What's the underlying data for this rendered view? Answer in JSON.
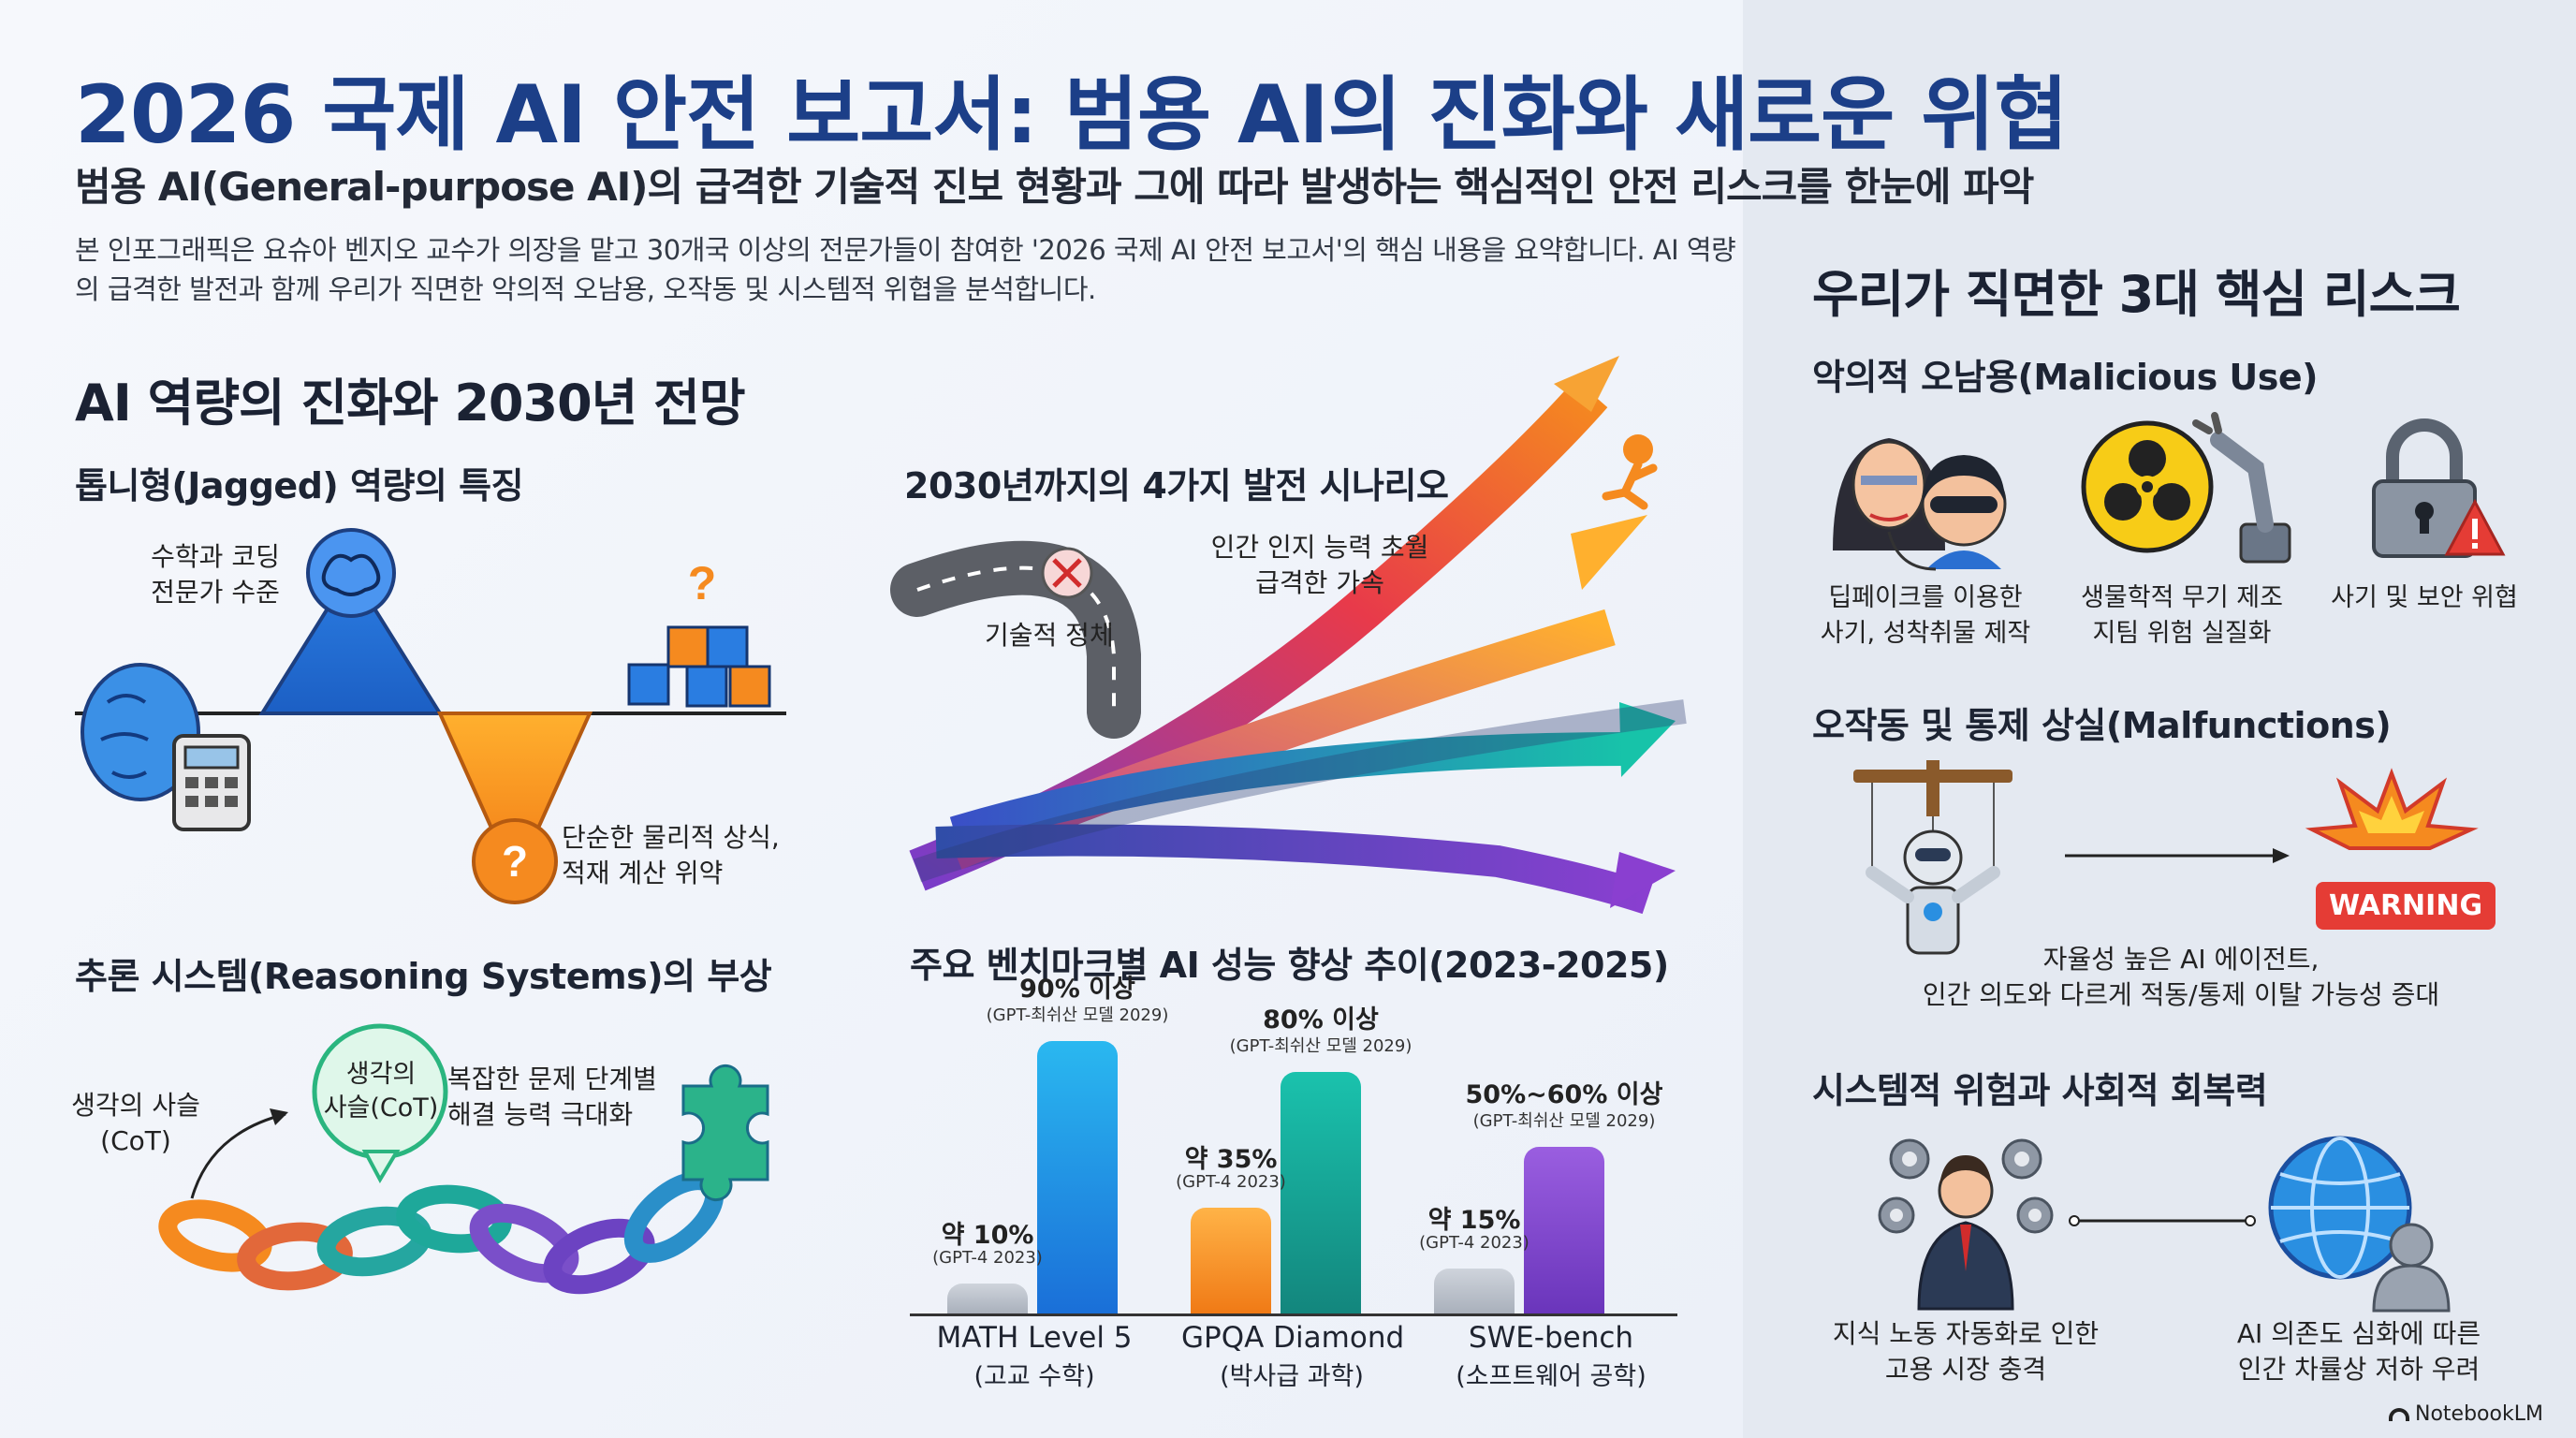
{
  "header": {
    "title": "2026 국제 AI 안전 보고서: 범용 AI의 진화와 새로운 위협",
    "subtitle": "범용 AI(General-purpose AI)의 급격한 기술적 진보 현황과 그에 따라 발생하는 핵심적인 안전 리스크를 한눈에 파악",
    "intro": "본 인포그래픽은 요슈아 벤지오 교수가 의장을 맡고 30개국 이상의 전문가들이 참여한 '2026 국제 AI 안전 보고서'의 핵심 내용을 요약합니다. AI 역량의 급격한 발전과 함께 우리가 직면한 악의적 오남용, 오작동 및 시스템적 위협을 분석합니다."
  },
  "capabilities": {
    "heading": "AI 역량의 진화와 2030년 전망",
    "jagged": {
      "heading": "톱니형(Jagged) 역량의 특징",
      "peak_label_line1": "수학과 코딩",
      "peak_label_line2": "전문가 수준",
      "valley_label_line1": "단순한 물리적 상식,",
      "valley_label_line2": "적재 계산 위약"
    },
    "reasoning": {
      "heading": "추론 시스템(Reasoning Systems)의 부상",
      "cot_left_line1": "생각의 사슬",
      "cot_left_line2": "(CoT)",
      "bubble_line1": "생각의",
      "bubble_line2": "사슬(CoT)",
      "right_line1": "복잡한 문제 단계별",
      "right_line2": "해결 능력 극대화"
    },
    "scenarios": {
      "heading": "2030년까지의 4가지 발전 시나리오",
      "stagnation": "기술적 정체",
      "accel_line1": "인간 인지 능력 초월",
      "accel_line2": "급격한 가속"
    }
  },
  "benchmarks": {
    "heading": "주요 벤치마크별 AI 성능 향상 추이(2023-2025)",
    "groups": [
      {
        "name_line1": "MATH Level 5",
        "name_line2": "(고교 수학)",
        "before_label": "약 10%",
        "before_note": "(GPT-4 2023)",
        "after_label": "90% 이상",
        "after_note": "(GPT-최쉬산 모델 2029)"
      },
      {
        "name_line1": "GPQA Diamond",
        "name_line2": "(박사급 과학)",
        "before_label": "약 35%",
        "before_note": "(GPT-4 2023)",
        "after_label": "80% 이상",
        "after_note": "(GPT-최쉬산 모델 2029)"
      },
      {
        "name_line1": "SWE-bench",
        "name_line2": "(소프트웨어 공학)",
        "before_label": "약 15%",
        "before_note": "(GPT-4 2023)",
        "after_label": "50%~60% 이상",
        "after_note": "(GPT-최쉬산 모델 2029)"
      }
    ]
  },
  "risks": {
    "heading": "우리가 직면한 3대 핵심 리스크",
    "malicious": {
      "heading": "악의적 오남용(Malicious Use)",
      "items": [
        {
          "icon": "deepfake-faces-icon",
          "line1": "딥페이크를 이용한",
          "line2": "사기, 성착취물 제작"
        },
        {
          "icon": "biohazard-robot-arm-icon",
          "line1": "생물학적 무기 제조",
          "line2": "지팀 위험 실질화"
        },
        {
          "icon": "padlock-warning-icon",
          "line1": "사기 및 보안 위협",
          "line2": ""
        }
      ]
    },
    "malfunction": {
      "heading": "오작동 및 통제 상실(Malfunctions)",
      "warning": "WARNING",
      "line1": "자율성 높은 AI 에이전트,",
      "line2": "인간 의도와 다르게 적동/통제 이탈 가능성 증대"
    },
    "systemic": {
      "heading": "시스템적 위험과 사회적 회복력",
      "left_line1": "지식 노동 자동화로 인한",
      "left_line2": "고용 시장 충격",
      "right_line1": "AI 의존도 심화에 따른",
      "right_line2": "인간 차률상 저하 우려"
    }
  },
  "footer": {
    "brand": "NotebookLM"
  },
  "colors": {
    "title_blue": "#1c3f88",
    "warning_red": "#e53c35",
    "accent_orange": "#f58a1f",
    "accent_blue": "#1e8de0",
    "accent_teal": "#14b3a3",
    "accent_purple": "#7e45c8"
  },
  "chart_data": {
    "type": "bar",
    "title": "주요 벤치마크별 AI 성능 향상 추이(2023-2025)",
    "categories": [
      "MATH Level 5",
      "GPQA Diamond",
      "SWE-bench"
    ],
    "series": [
      {
        "values": [
          10,
          35,
          15
        ]
      },
      {
        "values": [
          90,
          80,
          55
        ]
      }
    ],
    "ylim": [
      0,
      100
    ]
  }
}
